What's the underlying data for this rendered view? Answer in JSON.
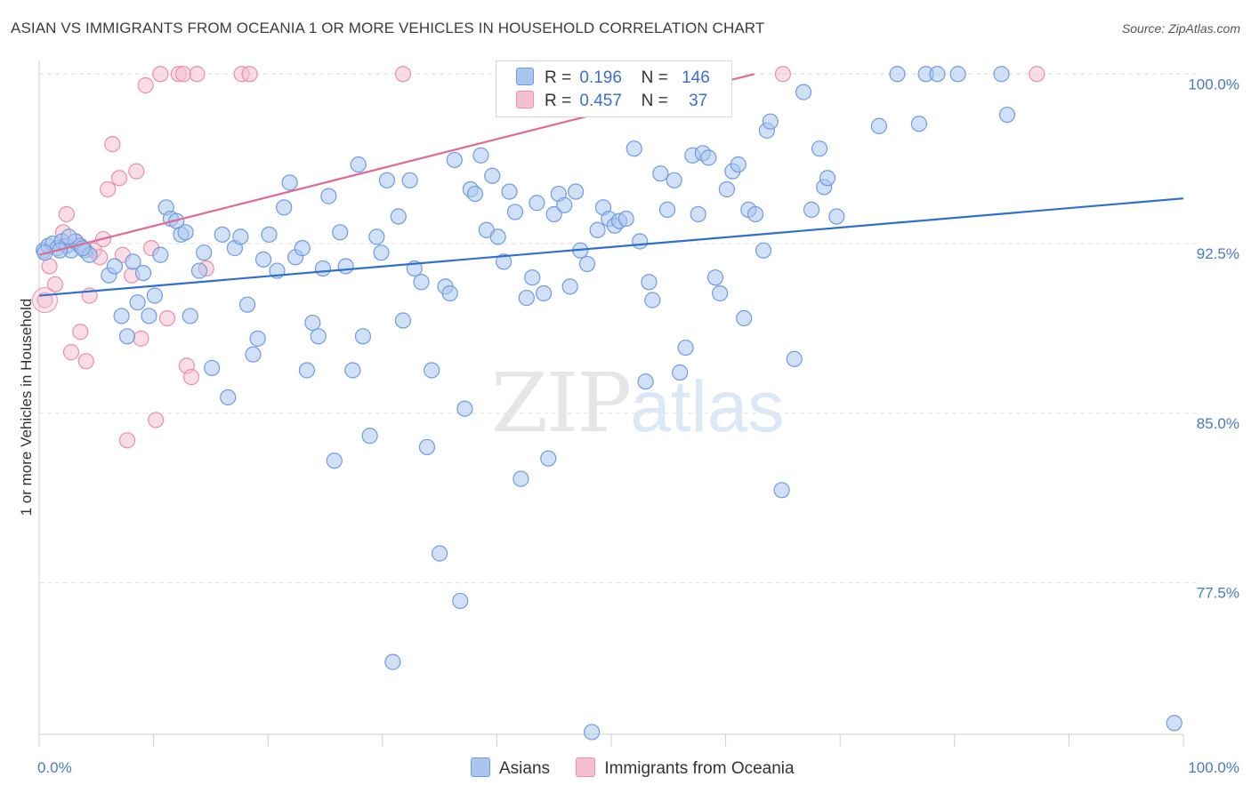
{
  "title": "ASIAN VS IMMIGRANTS FROM OCEANIA 1 OR MORE VEHICLES IN HOUSEHOLD CORRELATION CHART",
  "source": "Source: ZipAtlas.com",
  "watermark": {
    "zip": "ZIP",
    "atlas": "atlas"
  },
  "colors": {
    "blue_fill": "#aac6ee",
    "blue_stroke": "#6f9be0",
    "blue_line": "#2f6fd0",
    "pink_fill": "#f5bfd0",
    "pink_stroke": "#e890aa",
    "pink_line": "#e06a96",
    "tick_text": "#4a78c8",
    "grid": "#e3e3e3"
  },
  "legend": {
    "r_label": "R =",
    "n_label": "N =",
    "rows": [
      {
        "series": "Asians",
        "r": "0.196",
        "n": "146"
      },
      {
        "series": "Immigrants from Oceania",
        "r": "0.457",
        "n": "37"
      }
    ]
  },
  "chart_data": {
    "type": "scatter",
    "title": "ASIAN VS IMMIGRANTS FROM OCEANIA 1 OR MORE VEHICLES IN HOUSEHOLD CORRELATION CHART",
    "xlabel": "",
    "ylabel": "1 or more Vehicles in Household",
    "xlim": [
      0,
      100
    ],
    "ylim": [
      70.8,
      100.6
    ],
    "x_tick_labels": [
      {
        "value": 0,
        "label": "0.0%"
      },
      {
        "value": 100,
        "label": "100.0%"
      }
    ],
    "y_ticks": [
      {
        "value": 100.0,
        "label": "100.0%"
      },
      {
        "value": 92.5,
        "label": "92.5%"
      },
      {
        "value": 85.0,
        "label": "85.0%"
      },
      {
        "value": 77.5,
        "label": "77.5%"
      }
    ],
    "grid": true,
    "legend_position": "bottom",
    "series": [
      {
        "name": "Asians",
        "color": "#aac6ee",
        "trend": {
          "x": [
            0,
            100
          ],
          "y": [
            90.2,
            94.5
          ]
        },
        "points": [
          [
            0.4,
            92.2
          ],
          [
            0.8,
            92.4
          ],
          [
            1.2,
            92.5
          ],
          [
            1.6,
            92.3
          ],
          [
            2.0,
            92.6
          ],
          [
            2.4,
            92.4
          ],
          [
            2.8,
            92.2
          ],
          [
            3.2,
            92.6
          ],
          [
            3.6,
            92.4
          ],
          [
            4.0,
            92.2
          ],
          [
            4.4,
            92.0
          ],
          [
            0.5,
            92.1
          ],
          [
            1.8,
            92.2
          ],
          [
            2.6,
            92.8
          ],
          [
            3.8,
            92.3
          ],
          [
            6.1,
            91.1
          ],
          [
            6.6,
            91.5
          ],
          [
            7.2,
            89.3
          ],
          [
            7.7,
            88.4
          ],
          [
            8.2,
            91.7
          ],
          [
            8.6,
            89.9
          ],
          [
            9.1,
            91.2
          ],
          [
            9.6,
            89.3
          ],
          [
            10.1,
            90.2
          ],
          [
            10.6,
            92.0
          ],
          [
            11.1,
            94.1
          ],
          [
            11.5,
            93.6
          ],
          [
            12.0,
            93.5
          ],
          [
            12.4,
            92.9
          ],
          [
            12.8,
            93.0
          ],
          [
            13.2,
            89.3
          ],
          [
            14.0,
            91.3
          ],
          [
            14.4,
            92.1
          ],
          [
            15.1,
            87.0
          ],
          [
            16.0,
            92.9
          ],
          [
            16.5,
            85.7
          ],
          [
            17.1,
            92.3
          ],
          [
            17.6,
            92.8
          ],
          [
            18.2,
            89.8
          ],
          [
            18.7,
            87.6
          ],
          [
            19.1,
            88.3
          ],
          [
            19.6,
            91.8
          ],
          [
            20.1,
            92.9
          ],
          [
            20.8,
            91.3
          ],
          [
            21.4,
            94.1
          ],
          [
            21.9,
            95.2
          ],
          [
            22.4,
            91.9
          ],
          [
            23.0,
            92.3
          ],
          [
            23.4,
            86.9
          ],
          [
            23.9,
            89.0
          ],
          [
            24.4,
            88.4
          ],
          [
            24.8,
            91.4
          ],
          [
            25.3,
            94.6
          ],
          [
            25.8,
            82.9
          ],
          [
            26.3,
            93.0
          ],
          [
            26.8,
            91.5
          ],
          [
            27.4,
            86.9
          ],
          [
            27.9,
            96.0
          ],
          [
            28.3,
            88.4
          ],
          [
            28.9,
            84.0
          ],
          [
            29.5,
            92.8
          ],
          [
            29.9,
            92.1
          ],
          [
            30.4,
            95.3
          ],
          [
            30.9,
            74.0
          ],
          [
            31.4,
            93.7
          ],
          [
            31.8,
            89.1
          ],
          [
            32.4,
            95.3
          ],
          [
            32.8,
            91.4
          ],
          [
            33.4,
            90.8
          ],
          [
            33.9,
            83.5
          ],
          [
            34.3,
            86.9
          ],
          [
            35.0,
            78.8
          ],
          [
            35.5,
            90.6
          ],
          [
            35.9,
            90.3
          ],
          [
            36.3,
            96.2
          ],
          [
            36.8,
            76.7
          ],
          [
            37.2,
            85.2
          ],
          [
            37.7,
            94.9
          ],
          [
            38.1,
            94.7
          ],
          [
            38.6,
            96.4
          ],
          [
            39.1,
            93.1
          ],
          [
            39.6,
            95.5
          ],
          [
            40.1,
            92.8
          ],
          [
            40.6,
            91.7
          ],
          [
            41.1,
            94.8
          ],
          [
            41.6,
            93.9
          ],
          [
            42.1,
            82.1
          ],
          [
            42.6,
            90.1
          ],
          [
            43.1,
            91.0
          ],
          [
            43.5,
            94.3
          ],
          [
            44.1,
            90.3
          ],
          [
            44.5,
            83.0
          ],
          [
            45.0,
            93.8
          ],
          [
            45.4,
            94.7
          ],
          [
            45.9,
            94.2
          ],
          [
            46.4,
            90.6
          ],
          [
            46.9,
            94.8
          ],
          [
            47.3,
            92.2
          ],
          [
            47.9,
            91.6
          ],
          [
            48.3,
            70.9
          ],
          [
            48.8,
            93.1
          ],
          [
            49.3,
            94.1
          ],
          [
            49.8,
            93.6
          ],
          [
            50.3,
            93.3
          ],
          [
            50.7,
            93.5
          ],
          [
            51.3,
            93.6
          ],
          [
            52.0,
            96.7
          ],
          [
            52.5,
            92.6
          ],
          [
            53.0,
            86.4
          ],
          [
            53.3,
            90.8
          ],
          [
            53.6,
            90.0
          ],
          [
            54.3,
            95.6
          ],
          [
            54.9,
            94.0
          ],
          [
            55.5,
            95.3
          ],
          [
            56.0,
            86.8
          ],
          [
            56.5,
            87.9
          ],
          [
            57.1,
            96.4
          ],
          [
            57.6,
            93.8
          ],
          [
            58.0,
            96.5
          ],
          [
            58.5,
            96.3
          ],
          [
            59.1,
            91.0
          ],
          [
            59.5,
            90.3
          ],
          [
            60.1,
            94.9
          ],
          [
            60.6,
            95.7
          ],
          [
            61.1,
            96.0
          ],
          [
            61.6,
            89.2
          ],
          [
            62.0,
            94.0
          ],
          [
            62.6,
            93.8
          ],
          [
            63.3,
            92.2
          ],
          [
            63.6,
            97.5
          ],
          [
            63.9,
            97.9
          ],
          [
            64.9,
            81.6
          ],
          [
            66.0,
            87.4
          ],
          [
            66.8,
            99.2
          ],
          [
            67.5,
            94.0
          ],
          [
            68.2,
            96.7
          ],
          [
            68.6,
            95.0
          ],
          [
            68.9,
            95.4
          ],
          [
            69.7,
            93.7
          ],
          [
            73.4,
            97.7
          ],
          [
            75.0,
            100.0
          ],
          [
            76.9,
            97.8
          ],
          [
            77.5,
            100.0
          ],
          [
            78.5,
            100.0
          ],
          [
            80.3,
            100.0
          ],
          [
            84.1,
            100.0
          ],
          [
            84.6,
            98.2
          ],
          [
            99.2,
            71.3
          ]
        ]
      },
      {
        "name": "Immigrants from Oceania",
        "color": "#f5bfd0",
        "trend": {
          "x": [
            0,
            62.5
          ],
          "y": [
            92.0,
            100.0
          ]
        },
        "points": [
          [
            0.5,
            90.0
          ],
          [
            0.9,
            91.5
          ],
          [
            1.4,
            90.7
          ],
          [
            2.1,
            93.0
          ],
          [
            2.4,
            93.8
          ],
          [
            2.8,
            87.7
          ],
          [
            3.1,
            92.6
          ],
          [
            3.6,
            88.6
          ],
          [
            4.1,
            87.3
          ],
          [
            4.4,
            90.2
          ],
          [
            4.8,
            92.2
          ],
          [
            5.3,
            91.9
          ],
          [
            5.6,
            92.7
          ],
          [
            6.0,
            94.9
          ],
          [
            6.4,
            96.9
          ],
          [
            7.0,
            95.4
          ],
          [
            7.3,
            92.0
          ],
          [
            7.7,
            83.8
          ],
          [
            8.1,
            91.1
          ],
          [
            8.5,
            95.7
          ],
          [
            8.9,
            88.3
          ],
          [
            9.3,
            99.5
          ],
          [
            9.8,
            92.3
          ],
          [
            10.2,
            84.7
          ],
          [
            10.6,
            100.0
          ],
          [
            11.2,
            89.2
          ],
          [
            12.2,
            100.0
          ],
          [
            12.6,
            100.0
          ],
          [
            12.9,
            87.1
          ],
          [
            13.3,
            86.6
          ],
          [
            13.8,
            100.0
          ],
          [
            14.6,
            91.4
          ],
          [
            17.7,
            100.0
          ],
          [
            18.4,
            100.0
          ],
          [
            31.8,
            100.0
          ],
          [
            65.0,
            100.0
          ],
          [
            87.2,
            100.0
          ]
        ]
      }
    ]
  }
}
